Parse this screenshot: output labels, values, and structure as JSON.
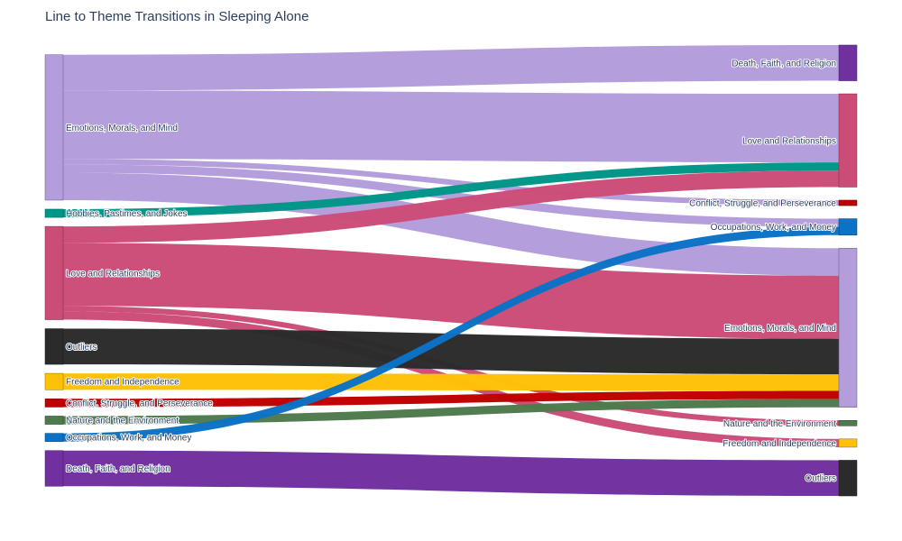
{
  "title": "Line to Theme Transitions in Sleeping Alone",
  "chart_data": {
    "type": "sankey",
    "title": "Line to Theme Transitions in Sleeping Alone",
    "source_nodes": [
      {
        "id": "s_emotions",
        "label": "Emotions, Morals, and Mind",
        "color": "#b39ddb"
      },
      {
        "id": "s_hobbies",
        "label": "Hobbies, Pastimes, and Jokes",
        "color": "#009688"
      },
      {
        "id": "s_love",
        "label": "Love and Relationships",
        "color": "#cc4c78"
      },
      {
        "id": "s_outliers",
        "label": "Outliers",
        "color": "#2b2b2b"
      },
      {
        "id": "s_freedom",
        "label": "Freedom and Independence",
        "color": "#ffc107"
      },
      {
        "id": "s_conflict",
        "label": "Conflict, Struggle, and Perseverance",
        "color": "#c00000"
      },
      {
        "id": "s_nature",
        "label": "Nature and the Environment",
        "color": "#4e7a4e"
      },
      {
        "id": "s_occupations",
        "label": "Occupations, Work, and Money",
        "color": "#0b72c6"
      },
      {
        "id": "s_death",
        "label": "Death, Faith, and Religion",
        "color": "#7030a0"
      }
    ],
    "target_nodes": [
      {
        "id": "t_death",
        "label": "Death, Faith, and Religion",
        "color": "#7030a0"
      },
      {
        "id": "t_love",
        "label": "Love and Relationships",
        "color": "#cc4c78"
      },
      {
        "id": "t_conflict",
        "label": "Conflict, Struggle, and Perseverance",
        "color": "#c00000"
      },
      {
        "id": "t_occupations",
        "label": "Occupations, Work, and Money",
        "color": "#0b72c6"
      },
      {
        "id": "t_emotions",
        "label": "Emotions, Morals, and Mind",
        "color": "#b39ddb"
      },
      {
        "id": "t_nature",
        "label": "Nature and the Environment",
        "color": "#4e7a4e"
      },
      {
        "id": "t_freedom",
        "label": "Freedom and Independence",
        "color": "#ffc107"
      },
      {
        "id": "t_outliers",
        "label": "Outliers",
        "color": "#2b2b2b"
      }
    ],
    "links": [
      {
        "source": "s_emotions",
        "target": "t_death",
        "value": 13
      },
      {
        "source": "s_emotions",
        "target": "t_love",
        "value": 25
      },
      {
        "source": "s_emotions",
        "target": "t_conflict",
        "value": 2
      },
      {
        "source": "s_emotions",
        "target": "t_occupations",
        "value": 3
      },
      {
        "source": "s_emotions",
        "target": "t_emotions",
        "value": 10
      },
      {
        "source": "s_hobbies",
        "target": "t_love",
        "value": 3
      },
      {
        "source": "s_love",
        "target": "t_love",
        "value": 6
      },
      {
        "source": "s_love",
        "target": "t_emotions",
        "value": 23
      },
      {
        "source": "s_love",
        "target": "t_nature",
        "value": 2
      },
      {
        "source": "s_love",
        "target": "t_freedom",
        "value": 3
      },
      {
        "source": "s_outliers",
        "target": "t_emotions",
        "value": 13
      },
      {
        "source": "s_freedom",
        "target": "t_emotions",
        "value": 6
      },
      {
        "source": "s_conflict",
        "target": "t_emotions",
        "value": 3
      },
      {
        "source": "s_nature",
        "target": "t_emotions",
        "value": 3
      },
      {
        "source": "s_occupations",
        "target": "t_occupations",
        "value": 3
      },
      {
        "source": "s_death",
        "target": "t_outliers",
        "value": 13
      }
    ]
  }
}
